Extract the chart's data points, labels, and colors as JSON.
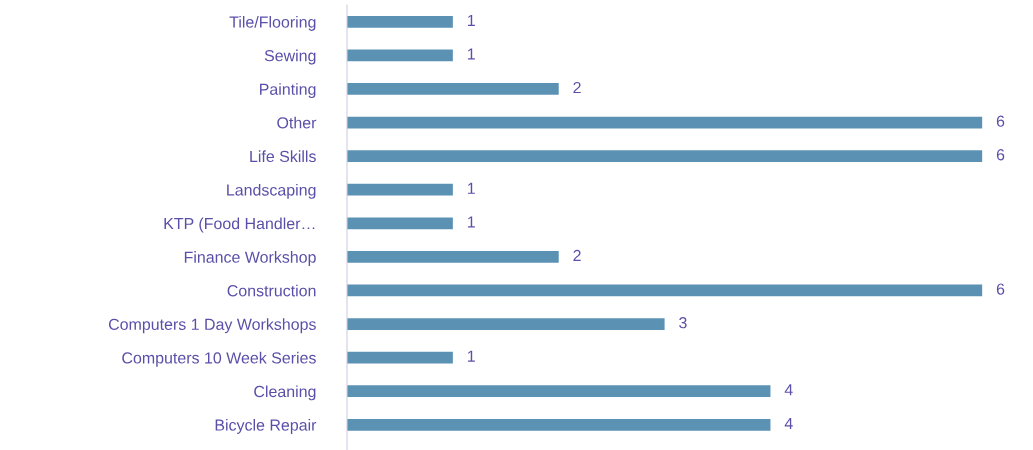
{
  "chart_data": {
    "type": "bar",
    "orientation": "horizontal",
    "categories": [
      "Tile/Flooring",
      "Sewing",
      "Painting",
      "Other",
      "Life Skills",
      "Landscaping",
      "KTP (Food Handler…",
      "Finance Workshop",
      "Construction",
      "Computers 1 Day Workshops",
      "Computers 10 Week Series",
      "Cleaning",
      "Bicycle Repair"
    ],
    "values": [
      1,
      1,
      2,
      6,
      6,
      1,
      1,
      2,
      6,
      3,
      1,
      4,
      4
    ],
    "color": "#5b92b4",
    "data_labels": true,
    "grid": false,
    "legend": false
  }
}
